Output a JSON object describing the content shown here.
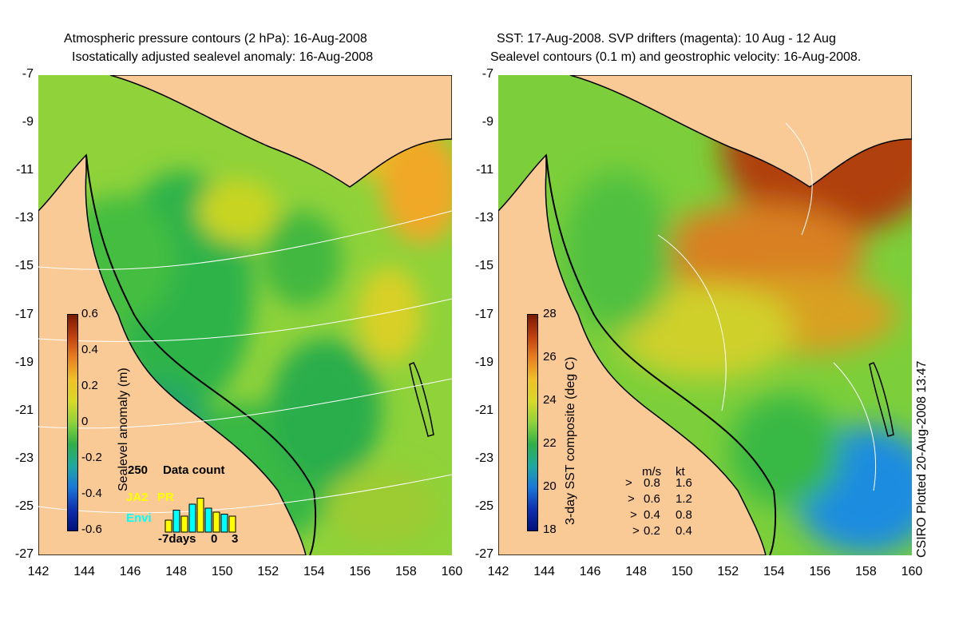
{
  "left_panel": {
    "title_line1": "Atmospheric pressure contours (2 hPa): 16-Aug-2008",
    "title_line2": "Isostatically adjusted sealevel anomaly: 16-Aug-2008",
    "colorbar_label": "Sealevel anomaly (m)",
    "colorbar_ticks": [
      "0.6",
      "0.4",
      "0.2",
      "0",
      "-0.2",
      "-0.4",
      "-0.6"
    ],
    "data_count_value": "250",
    "data_count_label": "Data count",
    "sat1": "JA2",
    "sat2": "PR",
    "sat3": "Envi",
    "days_axis": [
      "-7days",
      "0",
      "3"
    ],
    "inset_bars": [
      0.3,
      0.55,
      0.4,
      0.7,
      0.85,
      0.6,
      0.5,
      0.45,
      0.4
    ],
    "colors": {
      "sat1": "#ffff00",
      "sat3": "#00ffff"
    }
  },
  "right_panel": {
    "title_line1": "SST: 17-Aug-2008. SVP drifters (magenta): 10 Aug - 12 Aug",
    "title_line2": "Sealevel contours (0.1 m) and geostrophic velocity: 16-Aug-2008.",
    "colorbar_label": "3-day SST composite (deg C)",
    "colorbar_ticks": [
      "28",
      "26",
      "24",
      "22",
      "20",
      "18"
    ],
    "legend_header": [
      "m/s",
      "kt"
    ],
    "legend_rows": [
      [
        "0.8",
        "1.6"
      ],
      [
        "0.6",
        "1.2"
      ],
      [
        "0.4",
        "0.8"
      ],
      [
        "0.2",
        "0.4"
      ]
    ]
  },
  "axes": {
    "y_ticks": [
      "-7",
      "-9",
      "-11",
      "-13",
      "-15",
      "-17",
      "-19",
      "-21",
      "-23",
      "-25",
      "-27"
    ],
    "x_ticks": [
      "142",
      "144",
      "146",
      "148",
      "150",
      "152",
      "154",
      "156",
      "158",
      "160"
    ]
  },
  "credit": "CSIRO Plotted 20-Aug-2008 13:47",
  "colors": {
    "land": "#f9c996",
    "coast": "#000000",
    "contour": "#ffffff"
  }
}
